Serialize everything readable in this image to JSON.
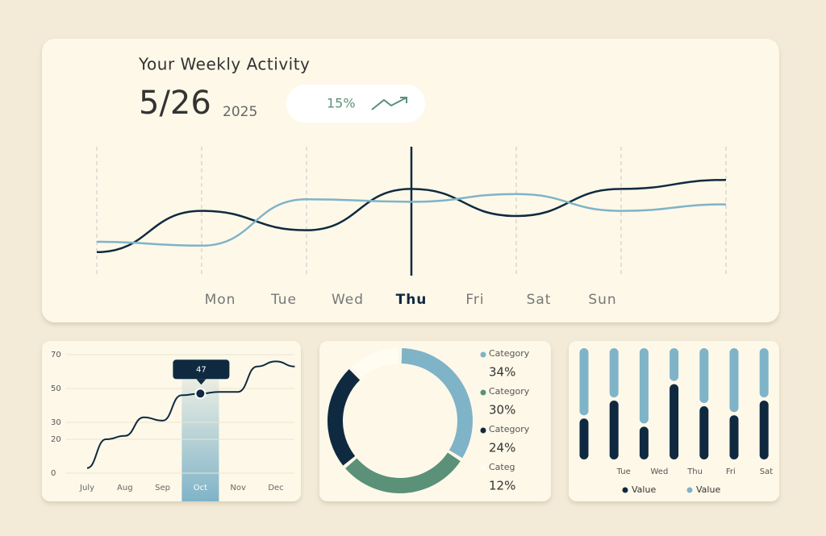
{
  "header": {
    "title": "Your Weekly Activity",
    "date": "5/26",
    "year": "2025",
    "change": "15%"
  },
  "chart_data": [
    {
      "type": "line",
      "categories": [
        "Mon",
        "Tue",
        "Wed",
        "Thu",
        "Fri",
        "Sat",
        "Sun"
      ],
      "highlight_index": 3,
      "series": [
        {
          "color": "#0f2a40",
          "values": [
            17,
            49,
            34,
            66,
            45,
            66,
            73
          ]
        },
        {
          "color": "#7fb3c8",
          "values": [
            25,
            22,
            58,
            56,
            62,
            49,
            54
          ]
        }
      ],
      "ylim": [
        0,
        100
      ]
    },
    {
      "type": "line",
      "categories": [
        "July",
        null,
        "Aug",
        null,
        "Sep",
        null,
        "Oct",
        null,
        "Nov",
        null,
        "Dec",
        null
      ],
      "values": [
        3,
        20,
        22,
        33,
        31,
        46,
        47,
        48,
        48,
        63,
        66,
        63
      ],
      "color": "#0f2a40",
      "highlight_index": 6,
      "ylim": [
        0,
        70
      ],
      "yticks": [
        0,
        20,
        30,
        50,
        70
      ],
      "grid": true
    },
    {
      "type": "pie",
      "donut": true,
      "categories": [
        "Category",
        "Category",
        "Category",
        "Categ"
      ],
      "values": [
        34,
        30,
        24,
        12
      ],
      "value_labels": [
        "34%",
        "30%",
        "24%",
        "12%"
      ],
      "colors": [
        "#7fb3c8",
        "#5a9178",
        "#0f2a40",
        "#fffcf2"
      ]
    },
    {
      "type": "bar",
      "stacked": true,
      "categories": [
        null,
        "Tue",
        "Wed",
        "Thu",
        "Fri",
        "Sat",
        null
      ],
      "series": [
        {
          "name": "Value",
          "color": "#0f2a40",
          "values": [
            50,
            72,
            40,
            92,
            65,
            54,
            72
          ]
        },
        {
          "name": "Value",
          "color": "#7fb3c8",
          "values": [
            86,
            64,
            96,
            44,
            71,
            82,
            64
          ]
        }
      ]
    }
  ]
}
